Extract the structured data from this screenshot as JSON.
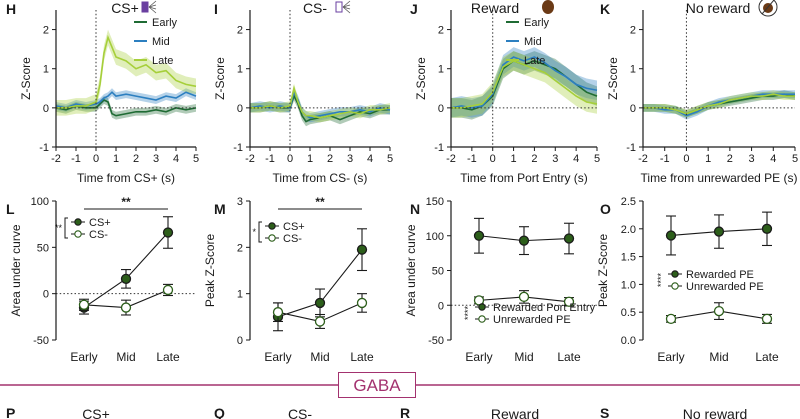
{
  "colors": {
    "early": "#1f6b34",
    "mid": "#2c7fc0",
    "late": "#a6cf3a",
    "dark_green": "#2c5e1a",
    "open_green": "#ffffff",
    "divider": "#a3326f",
    "reward_icon": "#6b3a16",
    "cs_plus_icon": "#6a3fa0"
  },
  "divider_label": "GABA",
  "bottom_row": {
    "labels": [
      "P",
      "Q",
      "R",
      "S"
    ],
    "titles": [
      "CS+",
      "CS-",
      "Reward",
      "No reward"
    ]
  },
  "chart_data": [
    {
      "panel": "H",
      "type": "line",
      "title": "CS+",
      "title_icon": "speaker-icon",
      "xlabel": "Time from CS+ (s)",
      "ylabel": "Z-Score",
      "xlim": [
        -2,
        5
      ],
      "ylim": [
        -1,
        2.5
      ],
      "xticks": [
        "-2",
        "-1",
        "0",
        "1",
        "2",
        "3",
        "4",
        "5"
      ],
      "yticks": [
        "-1",
        "0",
        "1",
        "2"
      ],
      "legend": [
        "Early",
        "Mid",
        "Late"
      ],
      "x": [
        -2,
        -1.5,
        -1,
        -0.5,
        0,
        0.2,
        0.4,
        0.6,
        0.8,
        1,
        1.5,
        2,
        2.5,
        3,
        3.5,
        4,
        4.5,
        5
      ],
      "series": [
        {
          "name": "Early",
          "values": [
            0,
            -0.05,
            0.05,
            0,
            0,
            0.1,
            0.2,
            0.15,
            -0.15,
            -0.2,
            -0.15,
            -0.1,
            -0.1,
            -0.05,
            -0.1,
            0,
            -0.05,
            0
          ],
          "sem": 0.1
        },
        {
          "name": "Mid",
          "values": [
            0.05,
            0,
            0.1,
            0.05,
            0.1,
            0.15,
            0.25,
            0.3,
            0.4,
            0.3,
            0.35,
            0.3,
            0.25,
            0.2,
            0.3,
            0.25,
            0.4,
            0.3
          ],
          "sem": 0.1
        },
        {
          "name": "Late",
          "values": [
            0,
            0,
            0.05,
            0.05,
            0.15,
            0.6,
            1.4,
            1.8,
            1.55,
            1.3,
            1.2,
            1.0,
            1.1,
            0.9,
            0.95,
            0.7,
            0.6,
            0.55
          ],
          "sem": 0.2
        }
      ]
    },
    {
      "panel": "I",
      "type": "line",
      "title": "CS-",
      "title_icon": "speaker-off-icon",
      "xlabel": "Time from CS- (s)",
      "ylabel": "Z-Score",
      "xlim": [
        -2,
        5
      ],
      "ylim": [
        -1,
        2.5
      ],
      "xticks": [
        "-2",
        "-1",
        "0",
        "1",
        "2",
        "3",
        "4",
        "5"
      ],
      "yticks": [
        "-1",
        "0",
        "1",
        "2"
      ],
      "x": [
        -2,
        -1.5,
        -1,
        -0.5,
        0,
        0.2,
        0.4,
        0.6,
        0.8,
        1,
        1.5,
        2,
        2.5,
        3,
        3.5,
        4,
        4.5,
        5
      ],
      "series": [
        {
          "name": "Early",
          "values": [
            0,
            0,
            0.05,
            0,
            0,
            0.3,
            0.1,
            -0.2,
            -0.35,
            -0.3,
            -0.25,
            -0.2,
            -0.3,
            -0.2,
            -0.1,
            -0.15,
            -0.05,
            -0.05
          ],
          "sem": 0.12
        },
        {
          "name": "Mid",
          "values": [
            0,
            0.05,
            0,
            0.05,
            0,
            0.4,
            0.2,
            -0.1,
            -0.2,
            -0.25,
            -0.2,
            -0.15,
            -0.1,
            -0.1,
            -0.05,
            -0.1,
            0,
            -0.05
          ],
          "sem": 0.12
        },
        {
          "name": "Late",
          "values": [
            0,
            0,
            0.05,
            0,
            0.05,
            0.5,
            0.15,
            -0.1,
            -0.2,
            -0.2,
            -0.25,
            -0.2,
            -0.15,
            -0.1,
            -0.15,
            -0.05,
            -0.05,
            0
          ],
          "sem": 0.12
        }
      ]
    },
    {
      "panel": "J",
      "type": "line",
      "title": "Reward",
      "title_icon": "pellet-icon",
      "xlabel": "Time from Port Entry (s)",
      "ylabel": "Z-Score",
      "xlim": [
        -2,
        5
      ],
      "ylim": [
        -1,
        2.5
      ],
      "xticks": [
        "-2",
        "-1",
        "0",
        "1",
        "2",
        "3",
        "4",
        "5"
      ],
      "yticks": [
        "-1",
        "0",
        "1",
        "2"
      ],
      "legend": [
        "Early",
        "Mid",
        "Late"
      ],
      "x": [
        -2,
        -1.5,
        -1,
        -0.5,
        0,
        0.5,
        1,
        1.5,
        2,
        2.5,
        3,
        3.5,
        4,
        4.5,
        5
      ],
      "series": [
        {
          "name": "Early",
          "values": [
            0,
            0,
            -0.05,
            0.05,
            0.3,
            1.0,
            1.2,
            1.1,
            1.2,
            1.1,
            1.0,
            0.8,
            0.6,
            0.4,
            0.3
          ],
          "sem": 0.25
        },
        {
          "name": "Mid",
          "values": [
            0,
            0.05,
            0,
            0.05,
            0.35,
            1.1,
            1.3,
            1.2,
            1.3,
            1.15,
            0.95,
            0.8,
            0.6,
            0.5,
            0.45
          ],
          "sem": 0.25
        },
        {
          "name": "Late",
          "values": [
            0,
            0,
            0.05,
            0.1,
            0.4,
            1.05,
            1.2,
            1.1,
            1.0,
            0.9,
            0.7,
            0.5,
            0.3,
            0.15,
            0.1
          ],
          "sem": 0.25
        }
      ]
    },
    {
      "panel": "K",
      "type": "line",
      "title": "No reward",
      "title_icon": "no-pellet-icon",
      "xlabel": "Time from unrewarded PE (s)",
      "ylabel": "Z-Score",
      "xlim": [
        -2,
        5
      ],
      "ylim": [
        -1,
        2.5
      ],
      "xticks": [
        "-2",
        "-1",
        "0",
        "1",
        "2",
        "3",
        "4",
        "5"
      ],
      "yticks": [
        "-1",
        "0",
        "1",
        "2"
      ],
      "x": [
        -2,
        -1.5,
        -1,
        -0.5,
        0,
        0.5,
        1,
        1.5,
        2,
        2.5,
        3,
        3.5,
        4,
        4.5,
        5
      ],
      "series": [
        {
          "name": "Early",
          "values": [
            0,
            0,
            0,
            -0.05,
            -0.15,
            -0.05,
            0.05,
            0.1,
            0.15,
            0.2,
            0.25,
            0.3,
            0.3,
            0.35,
            0.3
          ],
          "sem": 0.1
        },
        {
          "name": "Mid",
          "values": [
            0,
            0,
            -0.05,
            -0.05,
            -0.2,
            -0.1,
            0.05,
            0.15,
            0.2,
            0.25,
            0.3,
            0.35,
            0.35,
            0.35,
            0.35
          ],
          "sem": 0.1
        },
        {
          "name": "Late",
          "values": [
            0,
            0,
            0,
            -0.05,
            -0.15,
            -0.05,
            0.05,
            0.1,
            0.2,
            0.25,
            0.3,
            0.3,
            0.35,
            0.3,
            0.3
          ],
          "sem": 0.1
        }
      ]
    },
    {
      "panel": "L",
      "type": "scatter",
      "ylabel": "Area under curve",
      "categories": [
        "Early",
        "Mid",
        "Late"
      ],
      "ylim": [
        -50,
        100
      ],
      "yticks": [
        "-50",
        "0",
        "50",
        "100"
      ],
      "series": [
        {
          "name": "CS+",
          "values": [
            -15,
            16,
            66
          ],
          "err": [
            7,
            10,
            17
          ],
          "filled": true
        },
        {
          "name": "CS-",
          "values": [
            -12,
            -15,
            4
          ],
          "err": [
            6,
            8,
            6
          ],
          "filled": false
        }
      ],
      "legend": [
        "CS+",
        "CS-"
      ],
      "sig_top": "**",
      "sig_legend": "**"
    },
    {
      "panel": "M",
      "type": "scatter",
      "ylabel": "Peak Z-Score",
      "categories": [
        "Early",
        "Mid",
        "Late"
      ],
      "ylim": [
        0,
        3
      ],
      "yticks": [
        "0",
        "1",
        "2",
        "3"
      ],
      "series": [
        {
          "name": "CS+",
          "values": [
            0.5,
            0.8,
            1.95
          ],
          "err": [
            0.3,
            0.3,
            0.45
          ],
          "filled": true
        },
        {
          "name": "CS-",
          "values": [
            0.6,
            0.4,
            0.8
          ],
          "err": [
            0.2,
            0.15,
            0.2
          ],
          "filled": false
        }
      ],
      "legend": [
        "CS+",
        "CS-"
      ],
      "sig_top": "**",
      "sig_legend": "*"
    },
    {
      "panel": "N",
      "type": "scatter",
      "ylabel": "Area under curve",
      "categories": [
        "Early",
        "Mid",
        "Late"
      ],
      "ylim": [
        -50,
        150
      ],
      "yticks": [
        "-50",
        "0",
        "50",
        "100",
        "150"
      ],
      "series": [
        {
          "name": "Rewarded Port Entry",
          "values": [
            100,
            93,
            96
          ],
          "err": [
            25,
            20,
            22
          ],
          "filled": true
        },
        {
          "name": "Unrewarded PE",
          "values": [
            7,
            12,
            5
          ],
          "err": [
            5,
            9,
            6
          ],
          "filled": false
        }
      ],
      "legend": [
        "Rewarded Port Entry",
        "Unrewarded PE"
      ],
      "sig_legend": "****"
    },
    {
      "panel": "O",
      "type": "scatter",
      "ylabel": "Peak Z-Score",
      "categories": [
        "Early",
        "Mid",
        "Late"
      ],
      "ylim": [
        0,
        2.5
      ],
      "yticks": [
        "0.0",
        "0.5",
        "1.0",
        "1.5",
        "2.0",
        "2.5"
      ],
      "series": [
        {
          "name": "Rewarded PE",
          "values": [
            1.88,
            1.95,
            2.0
          ],
          "err": [
            0.35,
            0.3,
            0.3
          ],
          "filled": true
        },
        {
          "name": "Unrewarded PE",
          "values": [
            0.38,
            0.52,
            0.38
          ],
          "err": [
            0.06,
            0.15,
            0.08
          ],
          "filled": false
        }
      ],
      "legend": [
        "Rewarded PE",
        "Unrewarded PE"
      ],
      "sig_legend": "****"
    }
  ]
}
